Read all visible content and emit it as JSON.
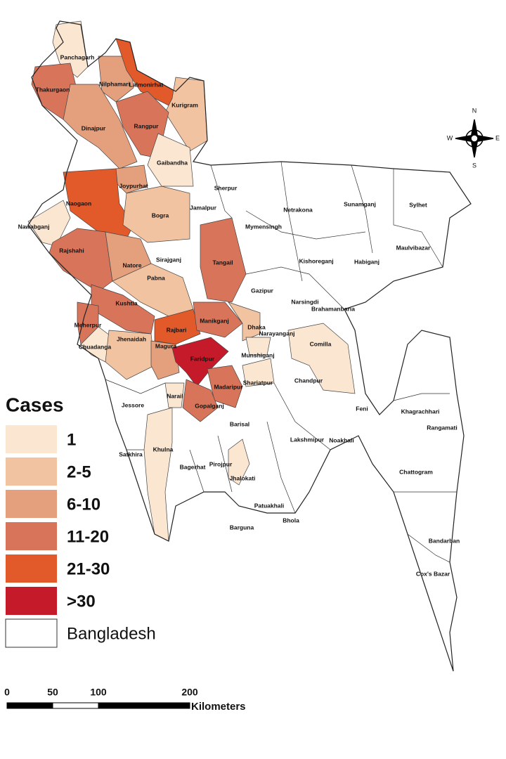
{
  "legend": {
    "title": "Cases",
    "items": [
      {
        "label": "1",
        "color": "#fbe6d2"
      },
      {
        "label": "2-5",
        "color": "#f2c3a1"
      },
      {
        "label": "6-10",
        "color": "#e49f7d"
      },
      {
        "label": "11-20",
        "color": "#d8745a"
      },
      {
        "label": "21-30",
        "color": "#e2592a"
      },
      {
        "label": ">30",
        "color": "#c51a2a"
      },
      {
        "label": "Bangladesh",
        "color": "#ffffff"
      }
    ]
  },
  "compass": {
    "n": "N",
    "s": "S",
    "e": "E",
    "w": "W"
  },
  "scale_bar": {
    "ticks": [
      0,
      50,
      100,
      200
    ],
    "unit": "Kilometers"
  },
  "districts": [
    {
      "name": "Panchagarh",
      "color": "#fbe6d2"
    },
    {
      "name": "Thakurgaon",
      "color": "#d8745a"
    },
    {
      "name": "Nilphamari",
      "color": "#e49f7d"
    },
    {
      "name": "Lalmonirhat",
      "color": "#e2592a"
    },
    {
      "name": "Kurigram",
      "color": "#f2c3a1"
    },
    {
      "name": "Dinajpur",
      "color": "#e49f7d"
    },
    {
      "name": "Rangpur",
      "color": "#d8745a"
    },
    {
      "name": "Gaibandha",
      "color": "#fbe6d2"
    },
    {
      "name": "Joypurhat",
      "color": "#e49f7d"
    },
    {
      "name": "Naogaon",
      "color": "#e2592a"
    },
    {
      "name": "Nawabganj",
      "color": "#fbe6d2"
    },
    {
      "name": "Bogra",
      "color": "#f2c3a1"
    },
    {
      "name": "Rajshahi",
      "color": "#d8745a"
    },
    {
      "name": "Natore",
      "color": "#e49f7d"
    },
    {
      "name": "Sirajganj",
      "color": "#ffffff"
    },
    {
      "name": "Pabna",
      "color": "#f2c3a1"
    },
    {
      "name": "Kushtia",
      "color": "#d8745a"
    },
    {
      "name": "Meherpur",
      "color": "#d8745a"
    },
    {
      "name": "Chuadanga",
      "color": "#fbe6d2"
    },
    {
      "name": "Jhenaidah",
      "color": "#f2c3a1"
    },
    {
      "name": "Magura",
      "color": "#e49f7d"
    },
    {
      "name": "Rajbari",
      "color": "#e2592a"
    },
    {
      "name": "Faridpur",
      "color": "#c51a2a"
    },
    {
      "name": "Manikganj",
      "color": "#d8745a"
    },
    {
      "name": "Dhaka",
      "color": "#f2c3a1"
    },
    {
      "name": "Narayanganj",
      "color": "#fbe6d2"
    },
    {
      "name": "Munshiganj",
      "color": "#ffffff"
    },
    {
      "name": "Shariatpur",
      "color": "#fbe6d2"
    },
    {
      "name": "Madaripur",
      "color": "#d8745a"
    },
    {
      "name": "Gopalganj",
      "color": "#d8745a"
    },
    {
      "name": "Narail",
      "color": "#fbe6d2"
    },
    {
      "name": "Jessore",
      "color": "#ffffff"
    },
    {
      "name": "Satkhira",
      "color": "#ffffff"
    },
    {
      "name": "Khulna",
      "color": "#fbe6d2"
    },
    {
      "name": "Bagerhat",
      "color": "#ffffff"
    },
    {
      "name": "Pirojpur",
      "color": "#ffffff"
    },
    {
      "name": "Jhalokati",
      "color": "#fbe6d2"
    },
    {
      "name": "Barisal",
      "color": "#ffffff"
    },
    {
      "name": "Patuakhali",
      "color": "#ffffff"
    },
    {
      "name": "Barguna",
      "color": "#ffffff"
    },
    {
      "name": "Bhola",
      "color": "#ffffff"
    },
    {
      "name": "Lakshmipur",
      "color": "#ffffff"
    },
    {
      "name": "Noakhali",
      "color": "#ffffff"
    },
    {
      "name": "Feni",
      "color": "#ffffff"
    },
    {
      "name": "Chandpur",
      "color": "#ffffff"
    },
    {
      "name": "Comilla",
      "color": "#fbe6d2"
    },
    {
      "name": "Tangail",
      "color": "#d8745a"
    },
    {
      "name": "Gazipur",
      "color": "#ffffff"
    },
    {
      "name": "Narsingdi",
      "color": "#ffffff"
    },
    {
      "name": "Brahamanbaria",
      "color": "#ffffff"
    },
    {
      "name": "Kishoreganj",
      "color": "#ffffff"
    },
    {
      "name": "Habiganj",
      "color": "#ffffff"
    },
    {
      "name": "Maulvibazar",
      "color": "#ffffff"
    },
    {
      "name": "Sylhet",
      "color": "#ffffff"
    },
    {
      "name": "Sunamganj",
      "color": "#ffffff"
    },
    {
      "name": "Netrakona",
      "color": "#ffffff"
    },
    {
      "name": "Mymensingh",
      "color": "#ffffff"
    },
    {
      "name": "Sherpur",
      "color": "#ffffff"
    },
    {
      "name": "Jamalpur",
      "color": "#ffffff"
    },
    {
      "name": "Khagrachhari",
      "color": "#ffffff"
    },
    {
      "name": "Rangamati",
      "color": "#ffffff"
    },
    {
      "name": "Chattogram",
      "color": "#ffffff"
    },
    {
      "name": "Bandarban",
      "color": "#ffffff"
    },
    {
      "name": "Cox's Bazar",
      "color": "#ffffff"
    }
  ]
}
